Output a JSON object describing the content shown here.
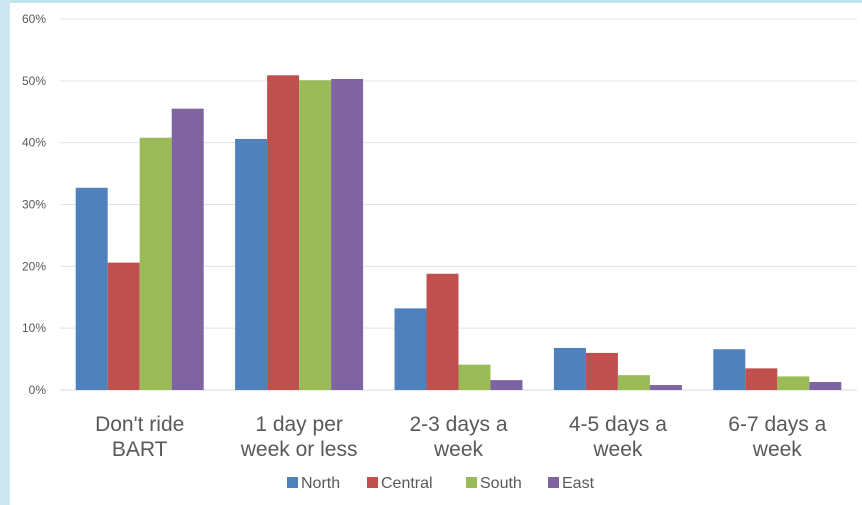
{
  "chart_data": {
    "type": "bar",
    "categories": [
      [
        "Don't ride",
        "BART"
      ],
      [
        "1 day per",
        "week or less"
      ],
      [
        "2-3 days a",
        "week"
      ],
      [
        "4-5 days a",
        "week"
      ],
      [
        "6-7 days a",
        "week"
      ]
    ],
    "series": [
      {
        "name": "North",
        "color": "#4f81bd",
        "values": [
          32.7,
          40.6,
          13.2,
          6.8,
          6.6
        ]
      },
      {
        "name": "Central",
        "color": "#c0504d",
        "values": [
          20.6,
          50.9,
          18.8,
          6.0,
          3.5
        ]
      },
      {
        "name": "South",
        "color": "#9bbb59",
        "values": [
          40.8,
          50.1,
          4.1,
          2.4,
          2.2
        ]
      },
      {
        "name": "East",
        "color": "#8064a2",
        "values": [
          45.5,
          50.3,
          1.6,
          0.8,
          1.3
        ]
      }
    ],
    "yticks": [
      "0%",
      "10%",
      "20%",
      "30%",
      "40%",
      "50%",
      "60%"
    ],
    "ylim": [
      0,
      60
    ],
    "grid": true,
    "legend": "bottom"
  }
}
